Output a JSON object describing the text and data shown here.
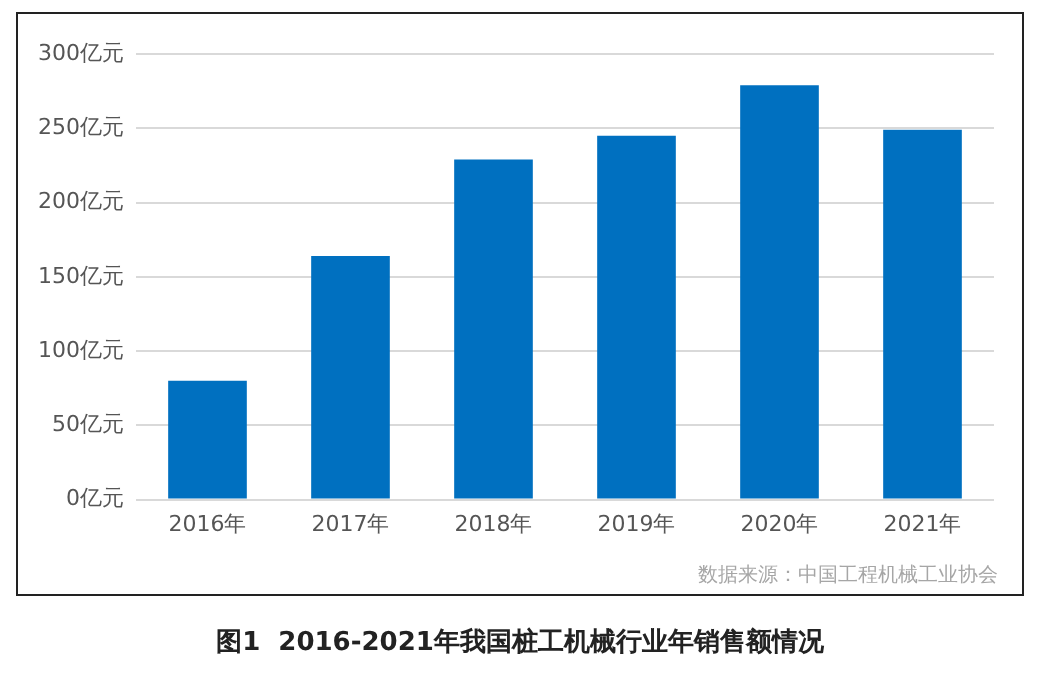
{
  "chart_data": {
    "type": "bar",
    "title": "图1  2016-2021年我国桩工机械行业年销售额情况",
    "categories": [
      "2016年",
      "2017年",
      "2018年",
      "2019年",
      "2020年",
      "2021年"
    ],
    "values": [
      80,
      164,
      229,
      245,
      279,
      249
    ],
    "color": "#0070c0",
    "ylim": [
      0,
      300
    ],
    "yticks": [
      {
        "value": 0,
        "label": "0亿元"
      },
      {
        "value": 50,
        "label": "50亿元"
      },
      {
        "value": 100,
        "label": "100亿元"
      },
      {
        "value": 150,
        "label": "150亿元"
      },
      {
        "value": 200,
        "label": "200亿元"
      },
      {
        "value": 250,
        "label": "250亿元"
      },
      {
        "value": 300,
        "label": "300亿元"
      }
    ],
    "grid": "y",
    "legend": false,
    "annotations": [
      "数据来源：中国工程机械工业协会"
    ]
  }
}
